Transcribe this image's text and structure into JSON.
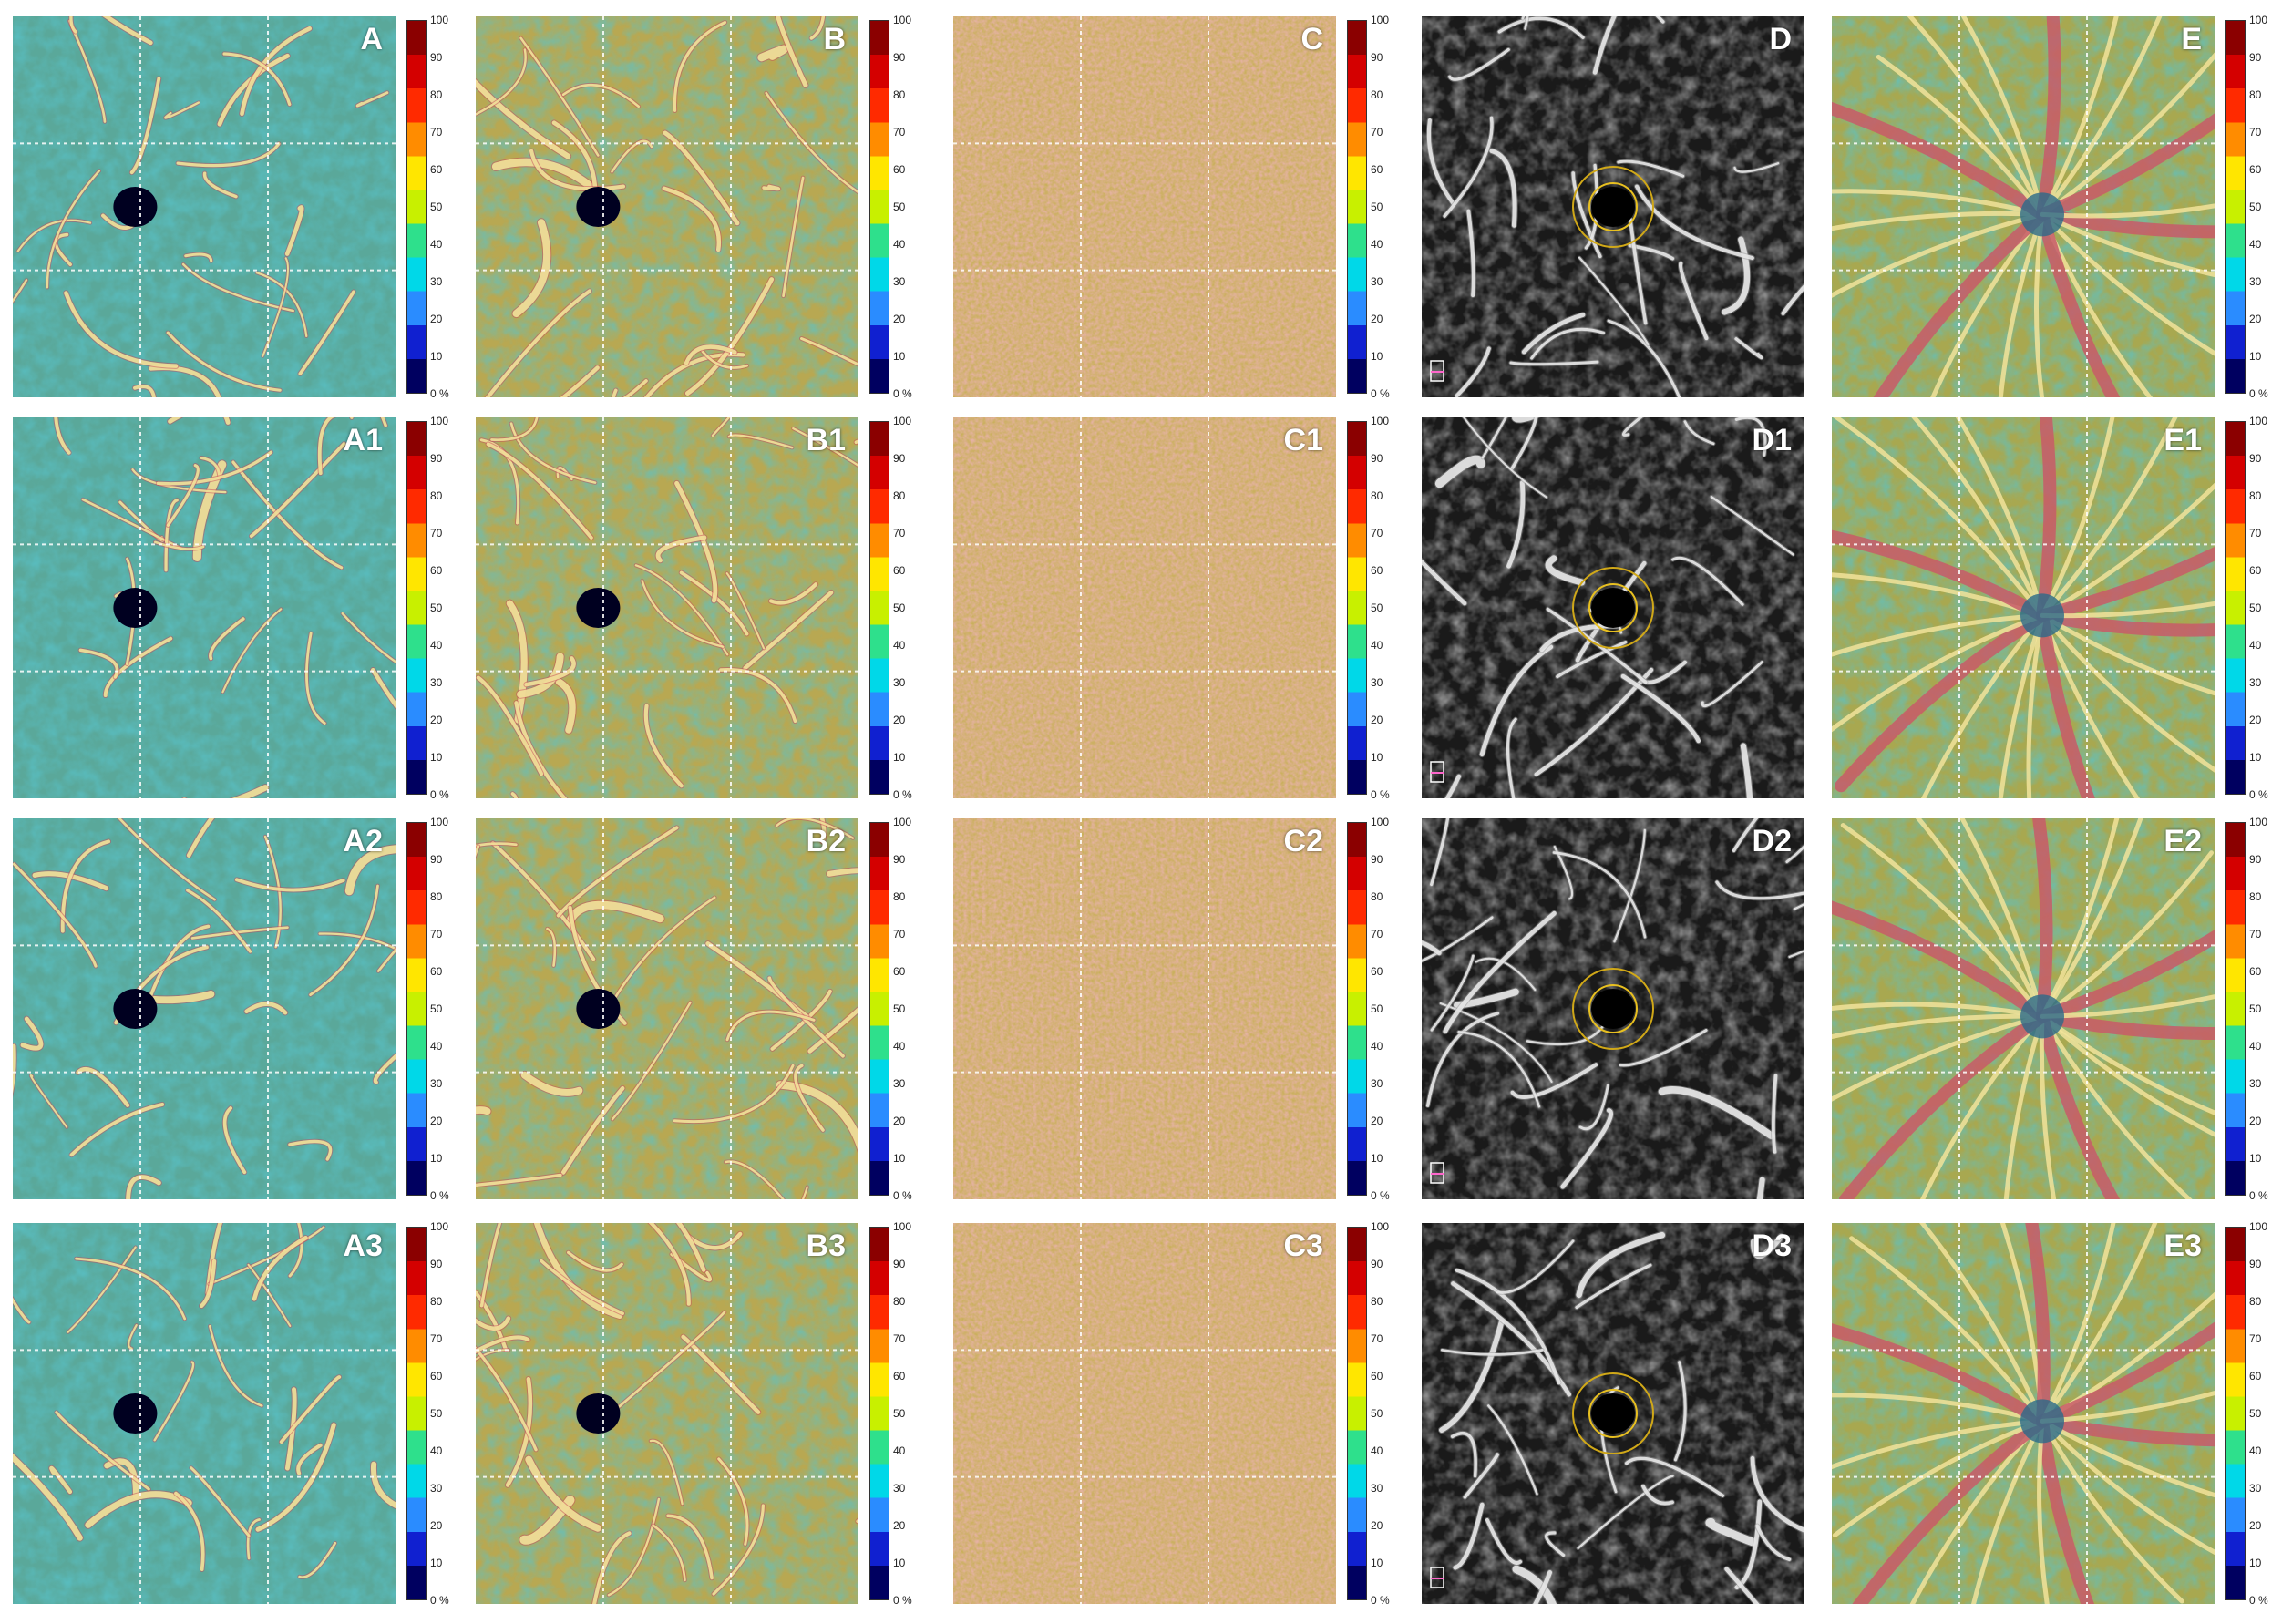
{
  "colorbar": {
    "ticks": [
      "100",
      "90",
      "80",
      "70",
      "60",
      "50",
      "40",
      "30",
      "20",
      "10",
      "0 %"
    ],
    "colors": [
      "#8b0000",
      "#d40000",
      "#ff2a00",
      "#ff8c00",
      "#ffe600",
      "#c8f000",
      "#2ee08c",
      "#00d8e8",
      "#2a8cff",
      "#1020d0",
      "#000060"
    ]
  },
  "rows": [
    [
      {
        "label": "A",
        "style": "macula-svp",
        "colorbar": true
      },
      {
        "label": "B",
        "style": "macula-dcp",
        "colorbar": true
      },
      {
        "label": "C",
        "style": "choriocapillaris",
        "colorbar": true
      },
      {
        "label": "D",
        "style": "grayscale-faz",
        "colorbar": false
      },
      {
        "label": "E",
        "style": "optic-disc",
        "colorbar": true
      }
    ],
    [
      {
        "label": "A1",
        "style": "macula-svp",
        "colorbar": true
      },
      {
        "label": "B1",
        "style": "macula-dcp",
        "colorbar": true
      },
      {
        "label": "C1",
        "style": "choriocapillaris",
        "colorbar": true
      },
      {
        "label": "D1",
        "style": "grayscale-faz",
        "colorbar": false
      },
      {
        "label": "E1",
        "style": "optic-disc",
        "colorbar": true
      }
    ],
    [
      {
        "label": "A2",
        "style": "macula-svp",
        "colorbar": true
      },
      {
        "label": "B2",
        "style": "macula-dcp",
        "colorbar": true
      },
      {
        "label": "C2",
        "style": "choriocapillaris",
        "colorbar": true
      },
      {
        "label": "D2",
        "style": "grayscale-faz",
        "colorbar": false
      },
      {
        "label": "E2",
        "style": "optic-disc",
        "colorbar": true
      }
    ],
    [
      {
        "label": "A3",
        "style": "macula-svp",
        "colorbar": true
      },
      {
        "label": "B3",
        "style": "macula-dcp",
        "colorbar": true
      },
      {
        "label": "C3",
        "style": "choriocapillaris",
        "colorbar": true
      },
      {
        "label": "D3",
        "style": "grayscale-faz",
        "colorbar": false
      },
      {
        "label": "E3",
        "style": "optic-disc",
        "colorbar": true
      }
    ]
  ]
}
